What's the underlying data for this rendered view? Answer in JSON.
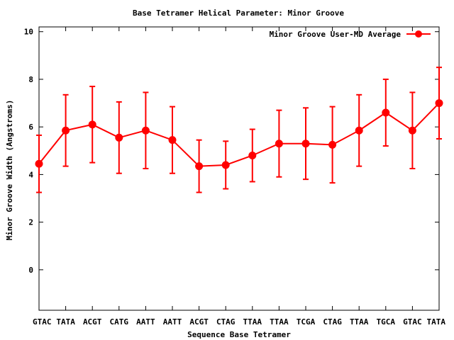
{
  "chart_data": {
    "type": "line",
    "title": "Base Tetramer Helical Parameter: Minor Groove",
    "xlabel": "Sequence Base Tetramer",
    "ylabel": "Minor Groove Width (Angstroms)",
    "ylim": [
      -1.7,
      10.2
    ],
    "yticks": [
      0,
      2,
      4,
      6,
      8,
      10
    ],
    "categories": [
      "GTAC",
      "TATA",
      "ACGT",
      "CATG",
      "AATT",
      "AATT",
      "ACGT",
      "CTAG",
      "TTAA",
      "TTAA",
      "TCGA",
      "CTAG",
      "TTAA",
      "TGCA",
      "GTAC",
      "TATA"
    ],
    "series": [
      {
        "name": "Minor Groove User-MD Average",
        "color": "#ff0000",
        "values": [
          4.45,
          5.85,
          6.1,
          5.55,
          5.85,
          5.45,
          4.35,
          4.4,
          4.8,
          5.3,
          5.3,
          5.25,
          5.85,
          6.6,
          5.85,
          7.0
        ],
        "err_low": [
          3.25,
          4.35,
          4.5,
          4.05,
          4.25,
          4.05,
          3.25,
          3.4,
          3.7,
          3.9,
          3.8,
          3.65,
          4.35,
          5.2,
          4.25,
          5.5
        ],
        "err_high": [
          5.65,
          7.35,
          7.7,
          7.05,
          7.45,
          6.85,
          5.45,
          5.4,
          5.9,
          6.7,
          6.8,
          6.85,
          7.35,
          8.0,
          7.45,
          8.5
        ]
      }
    ],
    "grid": false,
    "legend": "top-right"
  }
}
